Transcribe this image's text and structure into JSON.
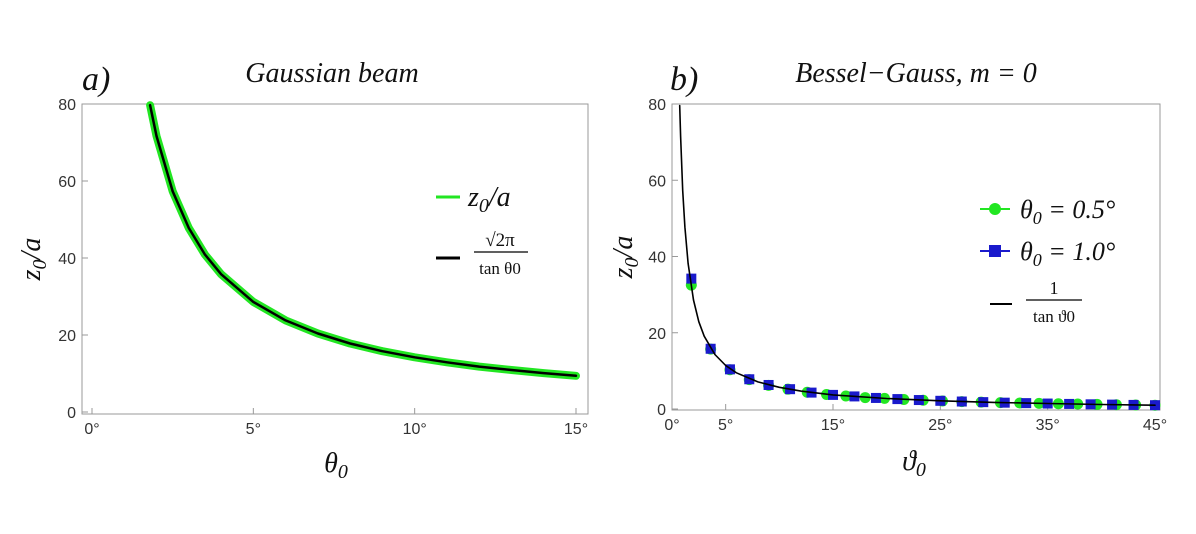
{
  "chart_data": [
    {
      "type": "line",
      "panel_label": "a)",
      "title": "Gaussian beam",
      "xlabel": "θ0",
      "ylabel": "z0/a",
      "xlim": [
        0,
        15
      ],
      "ylim": [
        0,
        80
      ],
      "xticks": [
        "0°",
        "5°",
        "10°",
        "15°"
      ],
      "yticks": [
        "0",
        "20",
        "40",
        "60",
        "80"
      ],
      "x_tick_values": [
        0,
        5,
        10,
        15
      ],
      "y_tick_values": [
        0,
        20,
        40,
        60,
        80
      ],
      "legend_position": "right",
      "series": [
        {
          "name": "z0/a",
          "color": "#22e622",
          "legend_text": "z0/a",
          "x": [
            1.8,
            2,
            2.5,
            3,
            3.5,
            4,
            5,
            6,
            7,
            8,
            9,
            10,
            11,
            12,
            13,
            14,
            15
          ],
          "y": [
            79.7,
            71.7,
            57.3,
            47.8,
            40.9,
            35.8,
            28.6,
            23.8,
            20.4,
            17.8,
            15.8,
            14.2,
            12.9,
            11.8,
            10.9,
            10.1,
            9.4
          ]
        },
        {
          "name": "√(2π)/tan θ0",
          "color": "#000000",
          "legend_num": "√2π",
          "legend_den": "tan θ0",
          "x": [
            1.8,
            2,
            2.5,
            3,
            3.5,
            4,
            5,
            6,
            7,
            8,
            9,
            10,
            11,
            12,
            13,
            14,
            15
          ],
          "y": [
            79.7,
            71.7,
            57.3,
            47.8,
            40.9,
            35.8,
            28.6,
            23.8,
            20.4,
            17.8,
            15.8,
            14.2,
            12.9,
            11.8,
            10.9,
            10.1,
            9.4
          ]
        }
      ]
    },
    {
      "type": "line+scatter",
      "panel_label": "b)",
      "title": "Bessel−Gauss,   m = 0",
      "xlabel": "ϑ0",
      "ylabel": "z0/a",
      "xlim": [
        0,
        45
      ],
      "ylim": [
        0,
        80
      ],
      "xticks": [
        "0°",
        "5°",
        "15°",
        "25°",
        "35°",
        "45°"
      ],
      "yticks": [
        "0",
        "20",
        "40",
        "60",
        "80"
      ],
      "x_tick_values": [
        0,
        5,
        15,
        25,
        35,
        45
      ],
      "y_tick_values": [
        0,
        20,
        40,
        60,
        80
      ],
      "legend_position": "right",
      "series": [
        {
          "name": "θ0 = 0.5°",
          "marker": "circle",
          "color": "#22e622",
          "x": [
            1.8,
            3.6,
            5.4,
            7.2,
            9,
            10.8,
            12.6,
            14.4,
            16.2,
            18,
            19.8,
            21.6,
            23.4,
            25.2,
            27,
            28.8,
            30.6,
            32.4,
            34.2,
            36,
            37.8,
            39.6,
            41.4,
            43.2,
            45
          ],
          "y": [
            32.5,
            15.7,
            10.3,
            7.7,
            6.2,
            5.2,
            4.4,
            3.8,
            3.4,
            3.0,
            2.8,
            2.5,
            2.3,
            2.1,
            1.95,
            1.8,
            1.68,
            1.57,
            1.47,
            1.38,
            1.3,
            1.2,
            1.13,
            1.06,
            1.0
          ]
        },
        {
          "name": "θ0 = 1.0°",
          "marker": "square",
          "color": "#1a1acc",
          "x": [
            1.8,
            3.6,
            5.4,
            7.2,
            9,
            11,
            13,
            15,
            17,
            19,
            21,
            23,
            25,
            27,
            29,
            31,
            33,
            35,
            37,
            39,
            41,
            43,
            45
          ],
          "y": [
            34.2,
            15.8,
            10.4,
            7.8,
            6.3,
            5.2,
            4.3,
            3.7,
            3.3,
            2.9,
            2.6,
            2.35,
            2.15,
            1.96,
            1.8,
            1.66,
            1.54,
            1.43,
            1.33,
            1.23,
            1.15,
            1.07,
            1.0
          ]
        },
        {
          "name": "1/tan ϑ0",
          "marker": "none",
          "color": "#000000",
          "legend_num": "1",
          "legend_den": "tan ϑ0",
          "x": [
            0.72,
            0.8,
            1,
            1.2,
            1.5,
            2,
            2.5,
            3,
            4,
            5,
            6,
            8,
            10,
            12,
            15,
            20,
            25,
            30,
            35,
            40,
            45
          ],
          "y": [
            79.6,
            71.6,
            57.3,
            47.7,
            38.2,
            28.6,
            22.9,
            19.1,
            14.3,
            11.4,
            9.5,
            7.1,
            5.7,
            4.7,
            3.7,
            2.75,
            2.14,
            1.73,
            1.43,
            1.19,
            1.0
          ]
        }
      ]
    }
  ]
}
